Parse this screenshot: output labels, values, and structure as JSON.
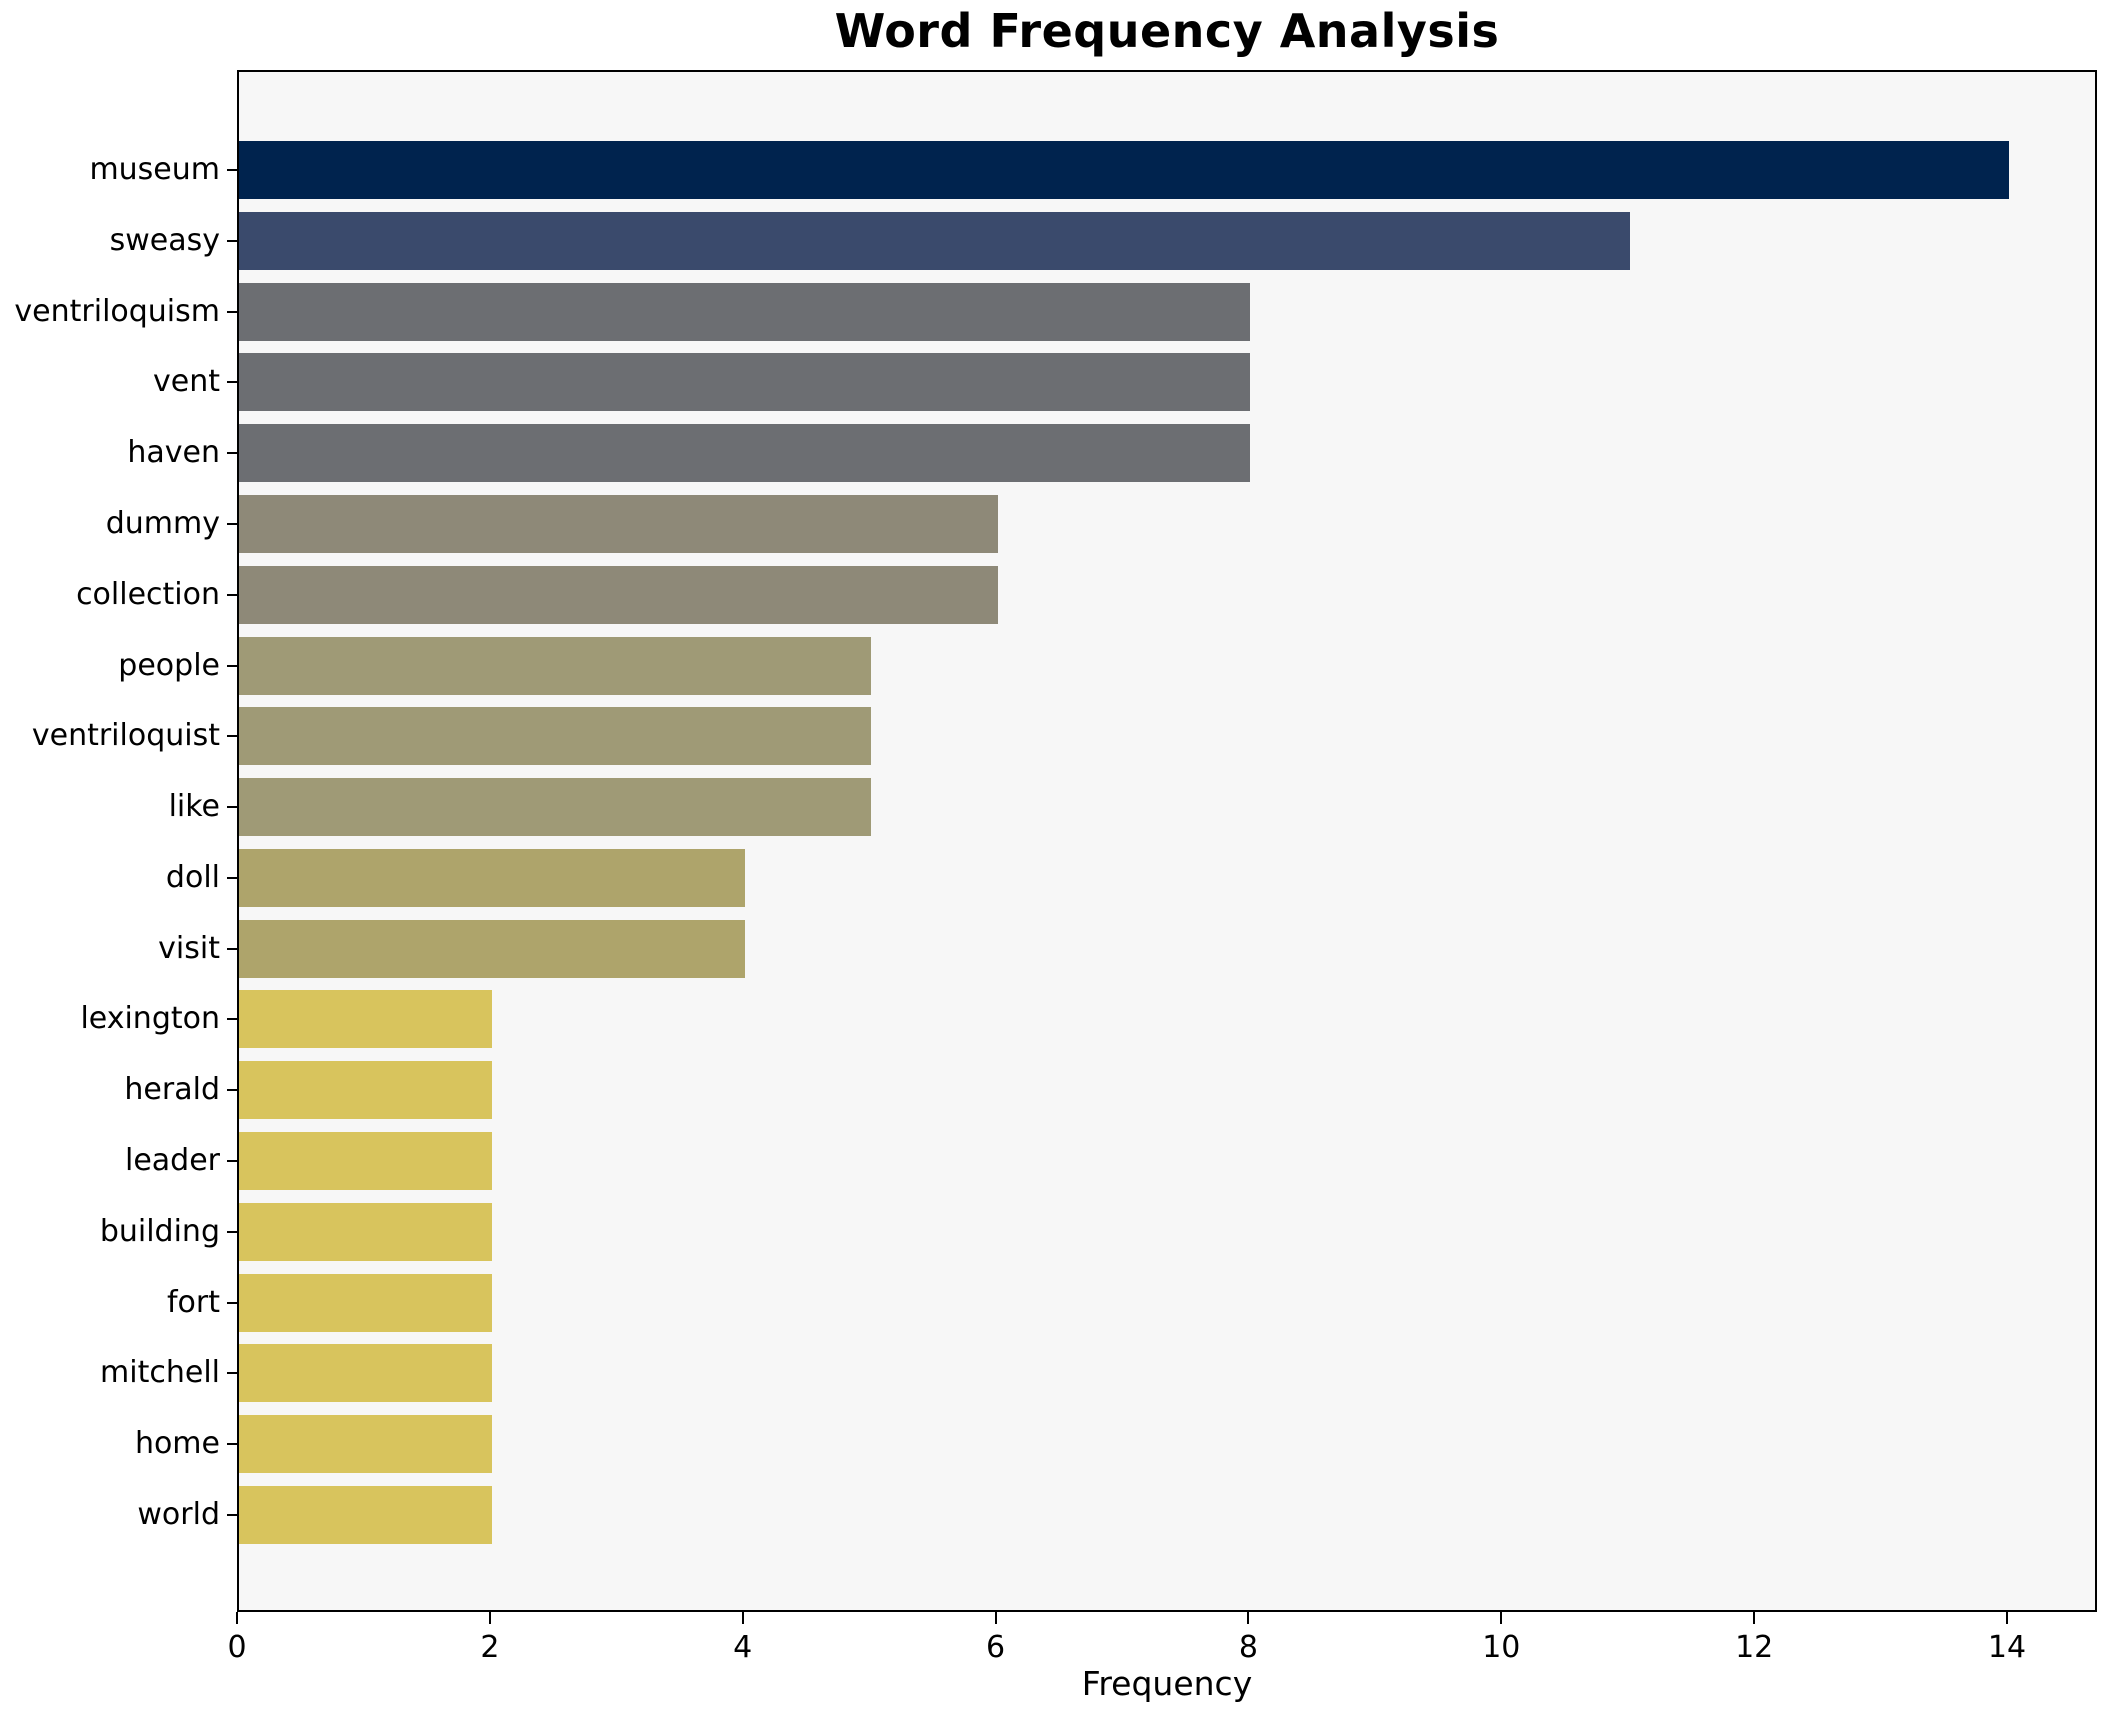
{
  "chart_data": {
    "type": "bar",
    "orientation": "horizontal",
    "title": "Word Frequency Analysis",
    "xlabel": "Frequency",
    "ylabel": "",
    "categories": [
      "museum",
      "sweasy",
      "ventriloquism",
      "vent",
      "haven",
      "dummy",
      "collection",
      "people",
      "ventriloquist",
      "like",
      "doll",
      "visit",
      "lexington",
      "herald",
      "leader",
      "building",
      "fort",
      "mitchell",
      "home",
      "world"
    ],
    "values": [
      14,
      11,
      8,
      8,
      8,
      6,
      6,
      5,
      5,
      5,
      4,
      4,
      2,
      2,
      2,
      2,
      2,
      2,
      2,
      2
    ],
    "bar_colors": [
      "#00234E",
      "#3A4A6C",
      "#6C6E72",
      "#6C6E72",
      "#6C6E72",
      "#8E8978",
      "#8E8978",
      "#9F9A76",
      "#9F9A76",
      "#9F9A76",
      "#AEA46B",
      "#AEA46B",
      "#D8C45D",
      "#D8C45D",
      "#D8C45D",
      "#D8C45D",
      "#D8C45D",
      "#D8C45D",
      "#D8C45D",
      "#D8C45D"
    ],
    "xticks": [
      0,
      2,
      4,
      6,
      8,
      10,
      12,
      14
    ],
    "xlim": [
      0,
      14.71
    ],
    "grid": false,
    "legend": null,
    "plot_background": "#f7f7f7",
    "axis_color": "#000000"
  }
}
